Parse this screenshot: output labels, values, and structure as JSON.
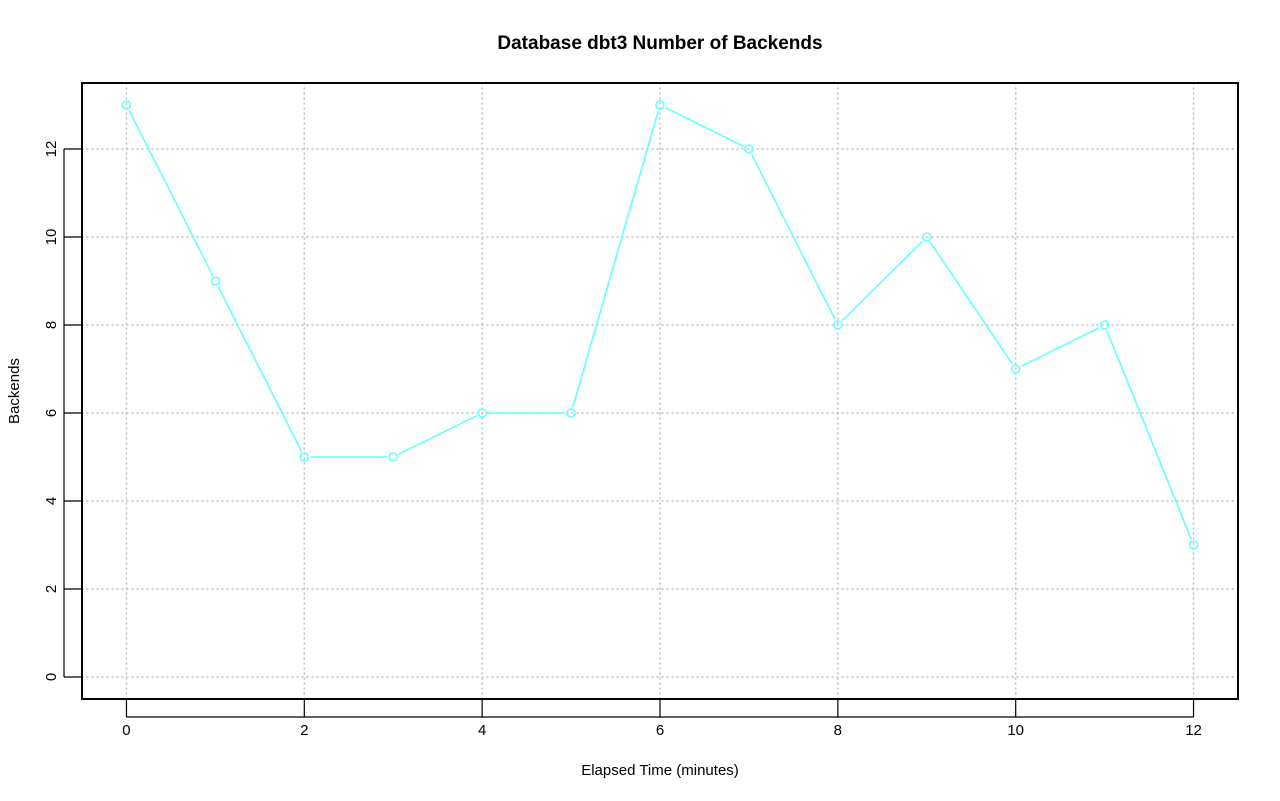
{
  "chart_data": {
    "type": "line",
    "title": "Database dbt3 Number of Backends",
    "xlabel": "Elapsed Time (minutes)",
    "ylabel": "Backends",
    "x": [
      0,
      1,
      2,
      3,
      4,
      5,
      6,
      7,
      8,
      9,
      10,
      11,
      12
    ],
    "series": [
      {
        "values": [
          13,
          9,
          5,
          5,
          6,
          6,
          13,
          12,
          8,
          10,
          7,
          8,
          3
        ],
        "color": "#66ffff",
        "marker": "open-circle"
      }
    ],
    "xlim": [
      -0.5,
      12.5
    ],
    "ylim": [
      -0.5,
      13.5
    ],
    "xticks": [
      0,
      2,
      4,
      6,
      8,
      10,
      12
    ],
    "yticks": [
      0,
      2,
      4,
      6,
      8,
      10,
      12
    ],
    "grid": true
  }
}
